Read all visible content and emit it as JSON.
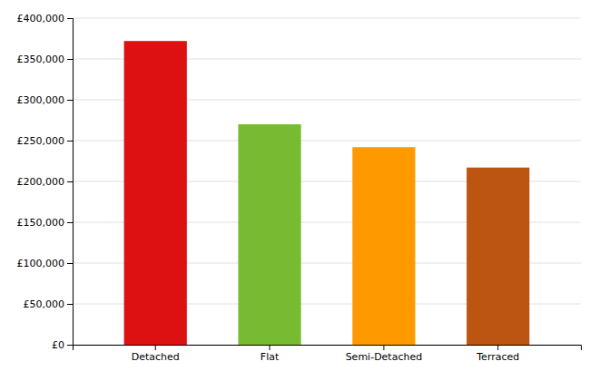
{
  "chart_data": {
    "type": "bar",
    "categories": [
      "Detached",
      "Flat",
      "Semi-Detached",
      "Terraced"
    ],
    "values": [
      372000,
      270000,
      242000,
      217000
    ],
    "colors": [
      "#dd1111",
      "#77bb33",
      "#ff9900",
      "#bb5511"
    ],
    "ylim": [
      0,
      400000
    ],
    "yticks": [
      {
        "value": 0,
        "label": "£0"
      },
      {
        "value": 50000,
        "label": "£50,000"
      },
      {
        "value": 100000,
        "label": "£100,000"
      },
      {
        "value": 150000,
        "label": "£150,000"
      },
      {
        "value": 200000,
        "label": "£200,000"
      },
      {
        "value": 250000,
        "label": "£250,000"
      },
      {
        "value": 300000,
        "label": "£300,000"
      },
      {
        "value": 350000,
        "label": "£350,000"
      },
      {
        "value": 400000,
        "label": "£400,000"
      }
    ],
    "grid": true
  }
}
